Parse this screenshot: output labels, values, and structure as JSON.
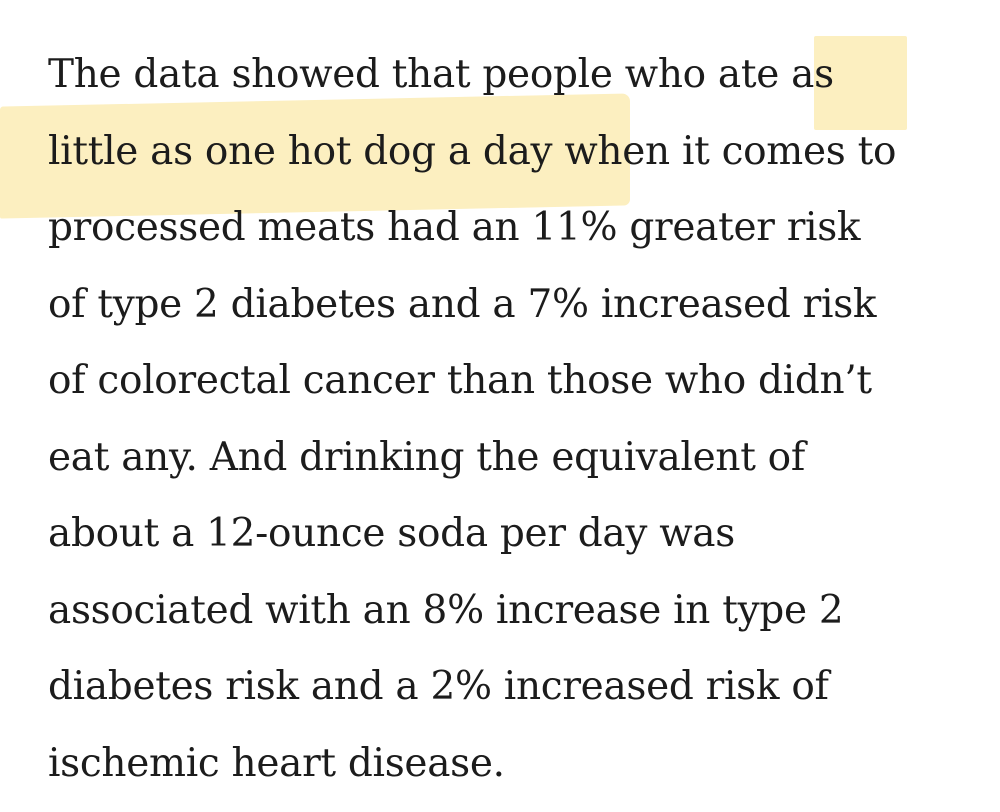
{
  "paragraph": {
    "lines": [
      "The data showed that people who ate as",
      "little as one hot dog a day when it comes to",
      "processed meats had an 11% greater risk",
      "of type 2 diabetes and a 7% increased risk",
      "of colorectal cancer than those who didn’t",
      "eat any. And drinking the equivalent of",
      "about a 12-ounce soda per day was",
      "associated with an 8% increase in type 2",
      "diabetes risk and a 2% increased risk of",
      "ischemic heart disease."
    ]
  },
  "colors": {
    "highlight": "#fcefc0",
    "text": "#1c1c1c",
    "background": "#ffffff"
  }
}
